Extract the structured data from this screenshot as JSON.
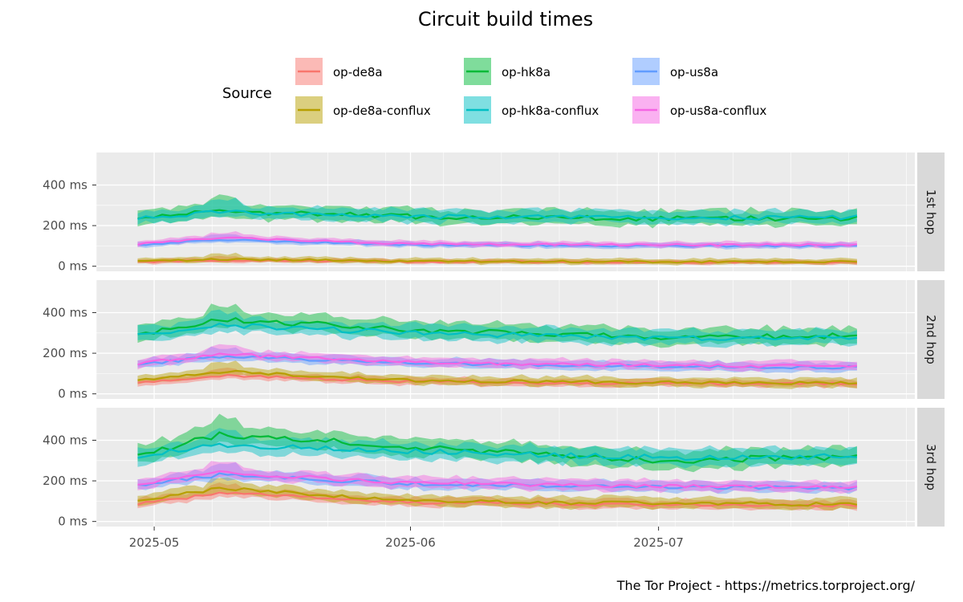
{
  "chart_data": {
    "type": "line",
    "title": "Circuit build times",
    "caption": "The Tor Project - https://metrics.torproject.org/",
    "legend": {
      "title": "Source",
      "placement": "top",
      "entries": [
        {
          "name": "op-de8a",
          "color": "#F8766D"
        },
        {
          "name": "op-hk8a",
          "color": "#00BA38"
        },
        {
          "name": "op-us8a",
          "color": "#619CFF"
        },
        {
          "name": "op-de8a-conflux",
          "color": "#B79F00"
        },
        {
          "name": "op-hk8a-conflux",
          "color": "#00BFC4"
        },
        {
          "name": "op-us8a-conflux",
          "color": "#F564E3"
        }
      ]
    },
    "x_ticks": [
      "2025-05",
      "2025-06",
      "2025-07"
    ],
    "x_range": [
      "2025-04-24",
      "2025-08-01"
    ],
    "y_ticks": [
      "0 ms",
      "200 ms",
      "400 ms"
    ],
    "y_range": [
      -25,
      560
    ],
    "grid": true,
    "facets": [
      {
        "label": "1st hop",
        "series": [
          {
            "name": "op-de8a",
            "points": [
              [
                "2025-04-29",
                20
              ],
              [
                "2025-05-09",
                30
              ],
              [
                "2025-06-01",
                22
              ],
              [
                "2025-07-01",
                20
              ],
              [
                "2025-07-25",
                20
              ]
            ],
            "band": 12
          },
          {
            "name": "op-de8a-conflux",
            "points": [
              [
                "2025-04-29",
                22
              ],
              [
                "2025-05-09",
                35
              ],
              [
                "2025-06-01",
                25
              ],
              [
                "2025-07-01",
                22
              ],
              [
                "2025-07-25",
                22
              ]
            ],
            "band": 15
          },
          {
            "name": "op-us8a",
            "points": [
              [
                "2025-04-29",
                105
              ],
              [
                "2025-05-09",
                130
              ],
              [
                "2025-06-01",
                105
              ],
              [
                "2025-07-01",
                100
              ],
              [
                "2025-07-25",
                100
              ]
            ],
            "band": 15
          },
          {
            "name": "op-us8a-conflux",
            "points": [
              [
                "2025-04-29",
                110
              ],
              [
                "2025-05-09",
                140
              ],
              [
                "2025-06-01",
                110
              ],
              [
                "2025-07-01",
                105
              ],
              [
                "2025-07-25",
                105
              ]
            ],
            "band": 15
          },
          {
            "name": "op-hk8a",
            "points": [
              [
                "2025-04-29",
                240
              ],
              [
                "2025-05-09",
                270
              ],
              [
                "2025-06-01",
                245
              ],
              [
                "2025-07-01",
                235
              ],
              [
                "2025-07-25",
                235
              ]
            ],
            "band": 40
          },
          {
            "name": "op-hk8a-conflux",
            "points": [
              [
                "2025-04-29",
                235
              ],
              [
                "2025-05-09",
                265
              ],
              [
                "2025-06-01",
                245
              ],
              [
                "2025-07-01",
                240
              ],
              [
                "2025-07-25",
                240
              ]
            ],
            "band": 35
          }
        ]
      },
      {
        "label": "2nd hop",
        "series": [
          {
            "name": "op-de8a",
            "points": [
              [
                "2025-04-29",
                55
              ],
              [
                "2025-05-09",
                90
              ],
              [
                "2025-06-01",
                60
              ],
              [
                "2025-07-01",
                50
              ],
              [
                "2025-07-25",
                50
              ]
            ],
            "band": 20
          },
          {
            "name": "op-de8a-conflux",
            "points": [
              [
                "2025-04-29",
                65
              ],
              [
                "2025-05-09",
                110
              ],
              [
                "2025-06-01",
                65
              ],
              [
                "2025-07-01",
                55
              ],
              [
                "2025-07-25",
                55
              ]
            ],
            "band": 25
          },
          {
            "name": "op-us8a",
            "points": [
              [
                "2025-04-29",
                145
              ],
              [
                "2025-05-09",
                185
              ],
              [
                "2025-06-01",
                150
              ],
              [
                "2025-07-01",
                135
              ],
              [
                "2025-07-25",
                130
              ]
            ],
            "band": 25
          },
          {
            "name": "op-us8a-conflux",
            "points": [
              [
                "2025-04-29",
                150
              ],
              [
                "2025-05-09",
                195
              ],
              [
                "2025-06-01",
                155
              ],
              [
                "2025-07-01",
                140
              ],
              [
                "2025-07-25",
                135
              ]
            ],
            "band": 25
          },
          {
            "name": "op-hk8a",
            "points": [
              [
                "2025-04-29",
                290
              ],
              [
                "2025-05-09",
                370
              ],
              [
                "2025-06-01",
                315
              ],
              [
                "2025-07-01",
                280
              ],
              [
                "2025-07-25",
                285
              ]
            ],
            "band": 45
          },
          {
            "name": "op-hk8a-conflux",
            "points": [
              [
                "2025-04-29",
                285
              ],
              [
                "2025-05-09",
                340
              ],
              [
                "2025-06-01",
                300
              ],
              [
                "2025-07-01",
                275
              ],
              [
                "2025-07-25",
                280
              ]
            ],
            "band": 40
          }
        ]
      },
      {
        "label": "3rd hop",
        "series": [
          {
            "name": "op-de8a",
            "points": [
              [
                "2025-04-29",
                85
              ],
              [
                "2025-05-09",
                140
              ],
              [
                "2025-06-01",
                95
              ],
              [
                "2025-07-01",
                80
              ],
              [
                "2025-07-25",
                80
              ]
            ],
            "band": 25
          },
          {
            "name": "op-de8a-conflux",
            "points": [
              [
                "2025-04-29",
                95
              ],
              [
                "2025-05-09",
                165
              ],
              [
                "2025-06-01",
                100
              ],
              [
                "2025-07-01",
                90
              ],
              [
                "2025-07-25",
                85
              ]
            ],
            "band": 30
          },
          {
            "name": "op-us8a",
            "points": [
              [
                "2025-04-29",
                180
              ],
              [
                "2025-05-09",
                230
              ],
              [
                "2025-06-01",
                185
              ],
              [
                "2025-07-01",
                170
              ],
              [
                "2025-07-25",
                165
              ]
            ],
            "band": 30
          },
          {
            "name": "op-us8a-conflux",
            "points": [
              [
                "2025-04-29",
                185
              ],
              [
                "2025-05-09",
                240
              ],
              [
                "2025-06-01",
                190
              ],
              [
                "2025-07-01",
                175
              ],
              [
                "2025-07-25",
                170
              ]
            ],
            "band": 30
          },
          {
            "name": "op-hk8a",
            "points": [
              [
                "2025-04-29",
                320
              ],
              [
                "2025-05-09",
                430
              ],
              [
                "2025-06-01",
                370
              ],
              [
                "2025-07-01",
                300
              ],
              [
                "2025-07-25",
                320
              ]
            ],
            "band": 50
          },
          {
            "name": "op-hk8a-conflux",
            "points": [
              [
                "2025-04-29",
                320
              ],
              [
                "2025-05-09",
                380
              ],
              [
                "2025-06-01",
                345
              ],
              [
                "2025-07-01",
                315
              ],
              [
                "2025-07-25",
                320
              ]
            ],
            "band": 45
          }
        ]
      }
    ]
  }
}
